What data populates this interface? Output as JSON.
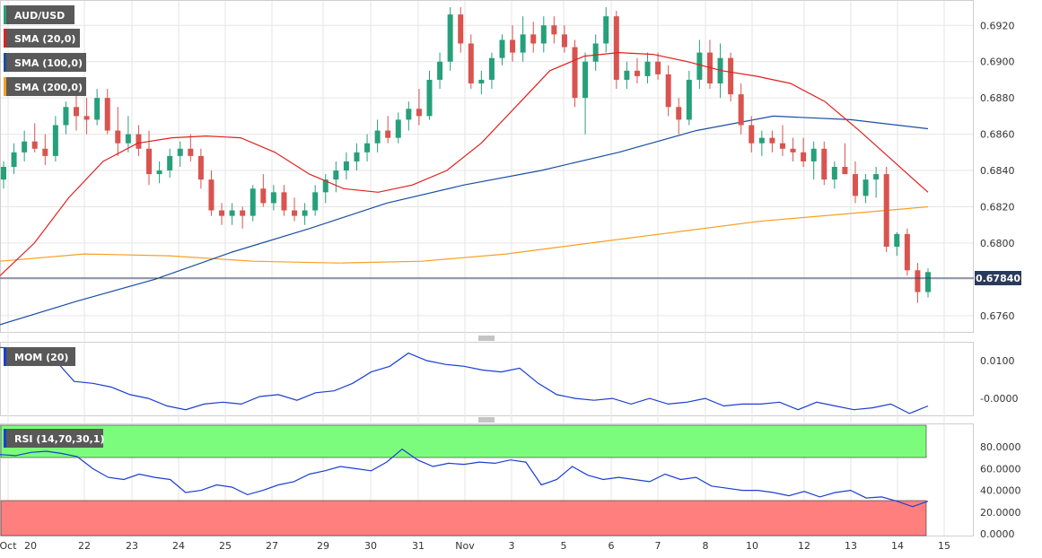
{
  "symbol": "AUD/USD",
  "colors": {
    "bull": "#26a07a",
    "bear": "#d9534f",
    "sma20": "#e02020",
    "sma100": "#1a4fa0",
    "sma200": "#f5a020",
    "mom": "#1a3fd0",
    "rsi": "#1a3fd0",
    "rsi_high_zone": "#7cfc7c",
    "rsi_low_zone": "#ff7f7f",
    "grid": "#e6e6e6",
    "legend_bg": "#595959"
  },
  "legends": {
    "symbol": "AUD/USD",
    "sma20": "SMA (20,0)",
    "sma100": "SMA (100,0)",
    "sma200": "SMA (200,0)",
    "mom": "MOM (20)",
    "rsi": "RSI (14,70,30,1)"
  },
  "price_axis": [
    "0.6920",
    "0.6900",
    "0.6880",
    "0.6860",
    "0.6840",
    "0.6820",
    "0.6800",
    "0.6780",
    "0.6760"
  ],
  "current_price": "0.67840",
  "mom_axis": [
    "0.0100",
    "-0.0000"
  ],
  "rsi_axis": [
    "80.0000",
    "60.0000",
    "40.0000",
    "20.0000",
    "0.0000"
  ],
  "x_axis": [
    "Oct",
    "20",
    "22",
    "23",
    "24",
    "25",
    "27",
    "29",
    "30",
    "31",
    "Nov",
    "3",
    "5",
    "6",
    "7",
    "8",
    "10",
    "12",
    "13",
    "14",
    "15"
  ],
  "chart_data": {
    "type": "candlestick",
    "timeframe_note": "",
    "price": {
      "ylim": [
        0.6752,
        0.6932
      ],
      "current": 0.6784,
      "candles_approx": [
        [
          0.6835,
          0.6845,
          0.683,
          0.6842
        ],
        [
          0.6842,
          0.6855,
          0.6838,
          0.685
        ],
        [
          0.685,
          0.6862,
          0.6845,
          0.6856
        ],
        [
          0.6856,
          0.6866,
          0.685,
          0.6852
        ],
        [
          0.6852,
          0.686,
          0.6843,
          0.6848
        ],
        [
          0.6848,
          0.687,
          0.6845,
          0.6865
        ],
        [
          0.6865,
          0.6878,
          0.686,
          0.6875
        ],
        [
          0.6875,
          0.689,
          0.6862,
          0.687
        ],
        [
          0.687,
          0.688,
          0.686,
          0.6868
        ],
        [
          0.6868,
          0.6885,
          0.6865,
          0.688
        ],
        [
          0.688,
          0.6885,
          0.686,
          0.6862
        ],
        [
          0.6862,
          0.6875,
          0.6848,
          0.6855
        ],
        [
          0.6855,
          0.687,
          0.685,
          0.686
        ],
        [
          0.686,
          0.6865,
          0.6848,
          0.6852
        ],
        [
          0.6852,
          0.6862,
          0.6832,
          0.6838
        ],
        [
          0.6838,
          0.6845,
          0.6833,
          0.684
        ],
        [
          0.684,
          0.6852,
          0.6836,
          0.6848
        ],
        [
          0.6848,
          0.6856,
          0.6842,
          0.6852
        ],
        [
          0.6852,
          0.686,
          0.6845,
          0.6848
        ],
        [
          0.6848,
          0.6852,
          0.683,
          0.6835
        ],
        [
          0.6835,
          0.684,
          0.6815,
          0.6818
        ],
        [
          0.6818,
          0.6822,
          0.681,
          0.6815
        ],
        [
          0.6815,
          0.6822,
          0.681,
          0.6818
        ],
        [
          0.6818,
          0.682,
          0.6808,
          0.6815
        ],
        [
          0.6815,
          0.6832,
          0.6812,
          0.683
        ],
        [
          0.683,
          0.6838,
          0.682,
          0.6822
        ],
        [
          0.6822,
          0.6832,
          0.6818,
          0.6828
        ],
        [
          0.6828,
          0.6832,
          0.6815,
          0.6818
        ],
        [
          0.6818,
          0.6825,
          0.6812,
          0.6815
        ],
        [
          0.6815,
          0.6822,
          0.681,
          0.6818
        ],
        [
          0.6818,
          0.6832,
          0.6815,
          0.6828
        ],
        [
          0.6828,
          0.6838,
          0.6822,
          0.6835
        ],
        [
          0.6835,
          0.6845,
          0.6828,
          0.684
        ],
        [
          0.684,
          0.685,
          0.6835,
          0.6845
        ],
        [
          0.6845,
          0.6855,
          0.684,
          0.685
        ],
        [
          0.685,
          0.686,
          0.6845,
          0.6855
        ],
        [
          0.6855,
          0.6868,
          0.685,
          0.6862
        ],
        [
          0.6862,
          0.687,
          0.6855,
          0.6858
        ],
        [
          0.6858,
          0.6872,
          0.6855,
          0.6868
        ],
        [
          0.6868,
          0.6878,
          0.6862,
          0.6874
        ],
        [
          0.6874,
          0.6885,
          0.6865,
          0.687
        ],
        [
          0.687,
          0.6895,
          0.6868,
          0.689
        ],
        [
          0.689,
          0.6905,
          0.6885,
          0.69
        ],
        [
          0.69,
          0.693,
          0.6895,
          0.6926
        ],
        [
          0.6926,
          0.693,
          0.6905,
          0.691
        ],
        [
          0.691,
          0.6915,
          0.6885,
          0.6888
        ],
        [
          0.6888,
          0.6895,
          0.6882,
          0.689
        ],
        [
          0.689,
          0.6905,
          0.6885,
          0.6902
        ],
        [
          0.6902,
          0.6915,
          0.6898,
          0.6912
        ],
        [
          0.6912,
          0.692,
          0.69,
          0.6905
        ],
        [
          0.6905,
          0.6925,
          0.69,
          0.6915
        ],
        [
          0.6915,
          0.6922,
          0.6905,
          0.691
        ],
        [
          0.691,
          0.6925,
          0.6905,
          0.692
        ],
        [
          0.692,
          0.6925,
          0.691,
          0.6915
        ],
        [
          0.6915,
          0.692,
          0.6905,
          0.6908
        ],
        [
          0.6908,
          0.6912,
          0.6875,
          0.688
        ],
        [
          0.688,
          0.6905,
          0.686,
          0.69
        ],
        [
          0.69,
          0.6915,
          0.6895,
          0.691
        ],
        [
          0.691,
          0.693,
          0.6905,
          0.6925
        ],
        [
          0.6925,
          0.6928,
          0.6885,
          0.689
        ],
        [
          0.689,
          0.69,
          0.6885,
          0.6895
        ],
        [
          0.6895,
          0.6902,
          0.6888,
          0.6892
        ],
        [
          0.6892,
          0.6905,
          0.6888,
          0.69
        ],
        [
          0.69,
          0.6905,
          0.689,
          0.6893
        ],
        [
          0.6893,
          0.6898,
          0.687,
          0.6875
        ],
        [
          0.6875,
          0.688,
          0.686,
          0.6868
        ],
        [
          0.6868,
          0.6895,
          0.6865,
          0.689
        ],
        [
          0.689,
          0.6912,
          0.6885,
          0.6905
        ],
        [
          0.6905,
          0.6912,
          0.6885,
          0.6888
        ],
        [
          0.6888,
          0.691,
          0.688,
          0.6902
        ],
        [
          0.6902,
          0.6905,
          0.6878,
          0.6882
        ],
        [
          0.6882,
          0.6888,
          0.686,
          0.6865
        ],
        [
          0.6865,
          0.687,
          0.685,
          0.6855
        ],
        [
          0.6855,
          0.6862,
          0.6848,
          0.6858
        ],
        [
          0.6858,
          0.6862,
          0.685,
          0.6855
        ],
        [
          0.6855,
          0.6865,
          0.6848,
          0.6852
        ],
        [
          0.6852,
          0.6858,
          0.6845,
          0.685
        ],
        [
          0.685,
          0.6858,
          0.6842,
          0.6845
        ],
        [
          0.6845,
          0.6856,
          0.6835,
          0.6852
        ],
        [
          0.6852,
          0.6856,
          0.6832,
          0.6835
        ],
        [
          0.6835,
          0.6845,
          0.683,
          0.6842
        ],
        [
          0.6842,
          0.6855,
          0.6838,
          0.6838
        ],
        [
          0.6838,
          0.6845,
          0.6822,
          0.6826
        ],
        [
          0.6826,
          0.6838,
          0.6822,
          0.6835
        ],
        [
          0.6835,
          0.6842,
          0.6825,
          0.6838
        ],
        [
          0.6838,
          0.6842,
          0.6795,
          0.6798
        ],
        [
          0.6798,
          0.6806,
          0.6793,
          0.6805
        ],
        [
          0.6805,
          0.6808,
          0.6782,
          0.6785
        ],
        [
          0.6785,
          0.6789,
          0.6767,
          0.6773
        ],
        [
          0.6773,
          0.6786,
          0.677,
          0.6784
        ]
      ]
    },
    "sma20_approx": [
      0.6782,
      0.68,
      0.6825,
      0.6845,
      0.6855,
      0.6858,
      0.6859,
      0.6858,
      0.685,
      0.6838,
      0.683,
      0.6828,
      0.6832,
      0.684,
      0.6855,
      0.6875,
      0.6895,
      0.6903,
      0.6905,
      0.6904,
      0.69,
      0.6895,
      0.6892,
      0.6888,
      0.6878,
      0.6862,
      0.6845,
      0.6828
    ],
    "sma100_approx": [
      0.6755,
      0.6768,
      0.678,
      0.6795,
      0.6808,
      0.6822,
      0.6832,
      0.684,
      0.685,
      0.6862,
      0.687,
      0.6868,
      0.6863
    ],
    "sma200_approx": [
      0.679,
      0.6794,
      0.6793,
      0.679,
      0.6789,
      0.679,
      0.6794,
      0.68,
      0.6806,
      0.6812,
      0.6816,
      0.682
    ],
    "mom": {
      "ylim": [
        -0.0045,
        0.015
      ]
    },
    "rsi": {
      "ylim": [
        0,
        100
      ],
      "levels": [
        70,
        30
      ]
    }
  }
}
